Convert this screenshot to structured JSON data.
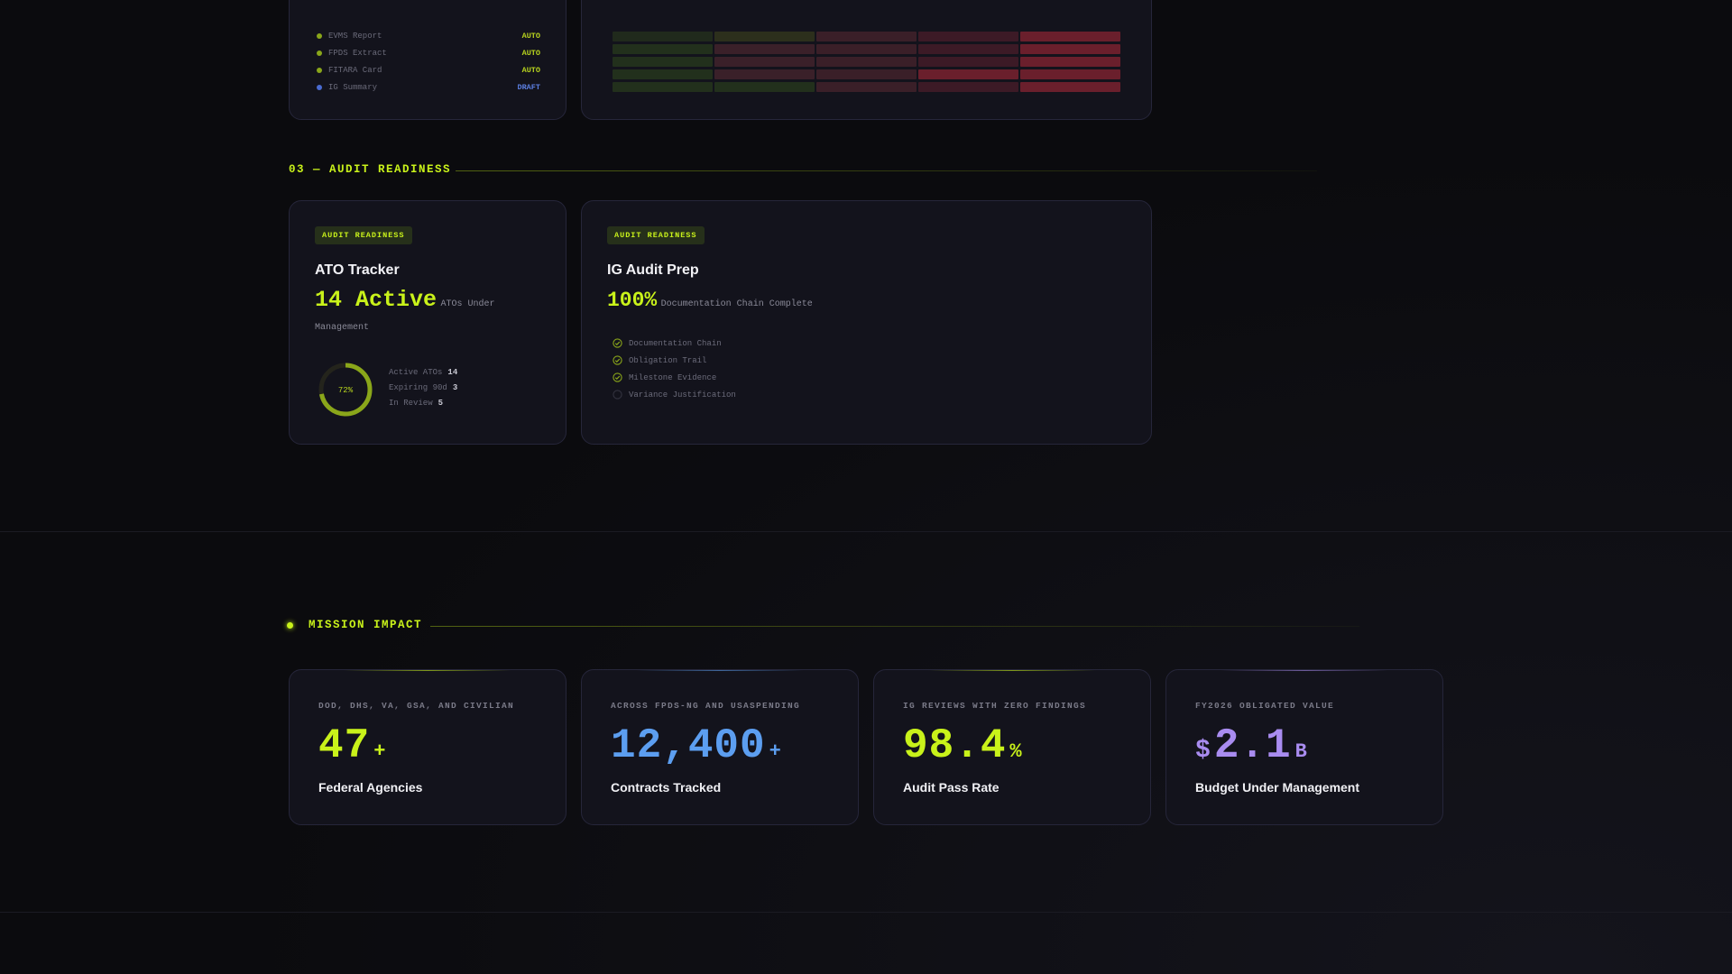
{
  "reports": [
    {
      "name": "EVMS Report",
      "tag": "AUTO",
      "dot_color": "#8aa61a",
      "tag_color": "#b8d41e"
    },
    {
      "name": "FPDS Extract",
      "tag": "AUTO",
      "dot_color": "#8aa61a",
      "tag_color": "#b8d41e"
    },
    {
      "name": "FITARA Card",
      "tag": "AUTO",
      "dot_color": "#8aa61a",
      "tag_color": "#b8d41e"
    },
    {
      "name": "IG Summary",
      "tag": "DRAFT",
      "dot_color": "#4a6bd1",
      "tag_color": "#5b7ee0"
    }
  ],
  "heatmap": {
    "rows": [
      [
        "#202a1c",
        "#2c2f1c",
        "#3a1f28",
        "#3c1a26",
        "#6a1f2c"
      ],
      [
        "#22301c",
        "#3a2029",
        "#3a1f28",
        "#3c1a26",
        "#6a1f2c"
      ],
      [
        "#22301c",
        "#3a2029",
        "#3a1f28",
        "#3c1a26",
        "#6a1f2c"
      ],
      [
        "#22301c",
        "#3a2029",
        "#3a1f28",
        "#6a1f2c",
        "#6a1f2c"
      ],
      [
        "#22301c",
        "#22301c",
        "#3a1f28",
        "#3c1a26",
        "#6a1f2c"
      ]
    ]
  },
  "section_audit": {
    "title": "03 — AUDIT READINESS"
  },
  "ato": {
    "badge": "AUDIT READINESS",
    "title": "ATO Tracker",
    "stat": "14 Active",
    "stat_sub_1": "ATOs Under",
    "stat_sub_2": "Management",
    "ring_label": "72%",
    "ring_percent": 72,
    "legend": [
      {
        "label": "Active ATOs",
        "value": "14"
      },
      {
        "label": "Expiring 90d",
        "value": "3"
      },
      {
        "label": "In Review",
        "value": "5"
      }
    ]
  },
  "ig": {
    "badge": "AUDIT READINESS",
    "title": "IG Audit Prep",
    "stat": "100%",
    "stat_sub": "Documentation Chain Complete",
    "checklist": [
      {
        "label": "Documentation Chain",
        "done": true
      },
      {
        "label": "Obligation Trail",
        "done": true
      },
      {
        "label": "Milestone Evidence",
        "done": true
      },
      {
        "label": "Variance Justification",
        "done": false
      }
    ]
  },
  "section_impact": {
    "title": "MISSION IMPACT"
  },
  "impact": [
    {
      "caption": "DOD, DHS, VA, GSA, AND CIVILIAN",
      "prefix": "",
      "value": "47",
      "suffix": "+",
      "label": "Federal Agencies",
      "color": "#c9f21a"
    },
    {
      "caption": "ACROSS FPDS-NG AND USASPENDING",
      "prefix": "",
      "value": "12,400",
      "suffix": "+",
      "label": "Contracts Tracked",
      "color": "#5c9ef0"
    },
    {
      "caption": "IG REVIEWS WITH ZERO FINDINGS",
      "prefix": "",
      "value": "98.4",
      "suffix": "%",
      "label": "Audit Pass Rate",
      "color": "#c9f21a"
    },
    {
      "caption": "FY2026 OBLIGATED VALUE",
      "prefix": "$",
      "value": "2.1",
      "suffix": "B",
      "label": "Budget Under Management",
      "color": "#a98cf0"
    }
  ],
  "colors": {
    "accent": "#c9f21a",
    "blue": "#5c9ef0",
    "purple": "#a98cf0"
  }
}
